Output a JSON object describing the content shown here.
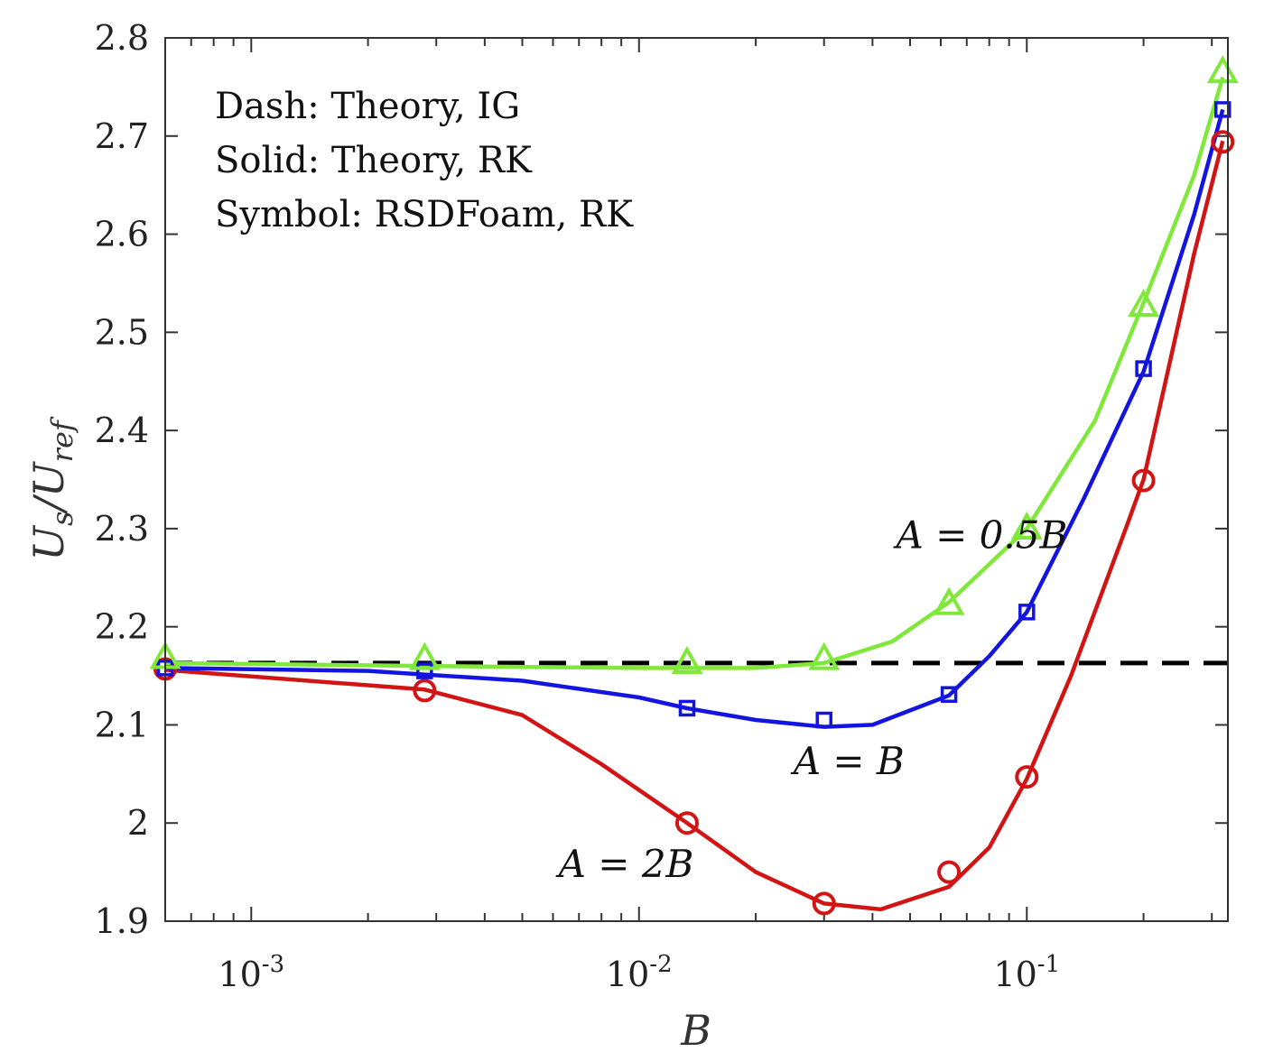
{
  "chart_data": {
    "type": "line",
    "xscale": "log",
    "xlim": [
      0.0006,
      0.33
    ],
    "ylim": [
      1.9,
      2.8
    ],
    "xlabel": "B",
    "ylabel": "U_s/U_ref",
    "ylabel_parts": {
      "main": "U",
      "sub1": "s",
      "slash": "/U",
      "sub2": "ref"
    },
    "yticks": [
      1.9,
      2,
      2.1,
      2.2,
      2.3,
      2.4,
      2.5,
      2.6,
      2.7,
      2.8
    ],
    "ytick_labels": [
      "1.9",
      "2",
      "2.1",
      "2.2",
      "2.3",
      "2.4",
      "2.5",
      "2.6",
      "2.7",
      "2.8"
    ],
    "xticks_major": [
      {
        "value": 0.001,
        "base": "10",
        "exp": "-3"
      },
      {
        "value": 0.01,
        "base": "10",
        "exp": "-2"
      },
      {
        "value": 0.1,
        "base": "10",
        "exp": "-1"
      }
    ],
    "annotation_lines": [
      "Dash: Theory, IG",
      "Solid: Theory, RK",
      "Symbol: RSDFoam, RK"
    ],
    "dashed_reference": {
      "value": 2.163,
      "color": "#000000"
    },
    "series": [
      {
        "label": "A = 0.5B",
        "color": "#7fe83a",
        "marker": "triangle",
        "label_anchor": [
          0.046,
          2.28
        ],
        "curve": [
          [
            0.0006,
            2.163
          ],
          [
            0.003,
            2.16
          ],
          [
            0.01,
            2.158
          ],
          [
            0.02,
            2.158
          ],
          [
            0.03,
            2.163
          ],
          [
            0.045,
            2.185
          ],
          [
            0.063,
            2.225
          ],
          [
            0.1,
            2.3
          ],
          [
            0.15,
            2.41
          ],
          [
            0.2,
            2.53
          ],
          [
            0.27,
            2.66
          ],
          [
            0.32,
            2.76
          ]
        ],
        "points": [
          [
            0.0006,
            2.168
          ],
          [
            0.0028,
            2.167
          ],
          [
            0.0133,
            2.163
          ],
          [
            0.03,
            2.167
          ],
          [
            0.063,
            2.223
          ],
          [
            0.1,
            2.3
          ],
          [
            0.2,
            2.527
          ],
          [
            0.32,
            2.765
          ]
        ]
      },
      {
        "label": "A = B",
        "color": "#1414e0",
        "marker": "square",
        "label_anchor": [
          0.025,
          2.05
        ],
        "curve": [
          [
            0.0006,
            2.158
          ],
          [
            0.002,
            2.155
          ],
          [
            0.005,
            2.145
          ],
          [
            0.01,
            2.128
          ],
          [
            0.0133,
            2.117
          ],
          [
            0.02,
            2.105
          ],
          [
            0.03,
            2.098
          ],
          [
            0.04,
            2.1
          ],
          [
            0.063,
            2.13
          ],
          [
            0.08,
            2.17
          ],
          [
            0.1,
            2.215
          ],
          [
            0.14,
            2.33
          ],
          [
            0.2,
            2.46
          ],
          [
            0.27,
            2.62
          ],
          [
            0.32,
            2.727
          ]
        ],
        "points": [
          [
            0.0006,
            2.158
          ],
          [
            0.0028,
            2.155
          ],
          [
            0.0133,
            2.117
          ],
          [
            0.03,
            2.105
          ],
          [
            0.063,
            2.131
          ],
          [
            0.1,
            2.215
          ],
          [
            0.2,
            2.463
          ],
          [
            0.32,
            2.727
          ]
        ]
      },
      {
        "label": "A = 2B",
        "color": "#d11414",
        "marker": "circle",
        "label_anchor": [
          0.0062,
          1.945
        ],
        "curve": [
          [
            0.0006,
            2.156
          ],
          [
            0.0028,
            2.136
          ],
          [
            0.005,
            2.11
          ],
          [
            0.008,
            2.06
          ],
          [
            0.0133,
            2.0
          ],
          [
            0.02,
            1.95
          ],
          [
            0.03,
            1.918
          ],
          [
            0.042,
            1.912
          ],
          [
            0.063,
            1.935
          ],
          [
            0.08,
            1.975
          ],
          [
            0.1,
            2.045
          ],
          [
            0.13,
            2.15
          ],
          [
            0.18,
            2.3
          ],
          [
            0.2,
            2.35
          ],
          [
            0.27,
            2.58
          ],
          [
            0.32,
            2.695
          ]
        ],
        "points": [
          [
            0.0006,
            2.157
          ],
          [
            0.0028,
            2.135
          ],
          [
            0.0133,
            2.0
          ],
          [
            0.03,
            1.918
          ],
          [
            0.063,
            1.95
          ],
          [
            0.1,
            2.047
          ],
          [
            0.2,
            2.349
          ],
          [
            0.32,
            2.694
          ]
        ]
      }
    ]
  }
}
